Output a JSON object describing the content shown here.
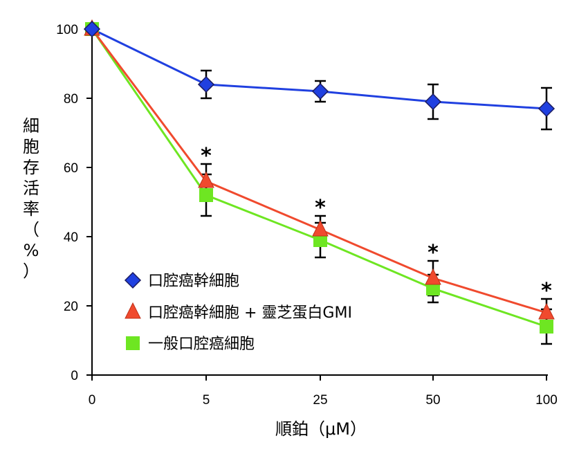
{
  "chart_data": {
    "type": "line",
    "xlabel": "順鉑（μM）",
    "ylabel": "細胞存活率（%）",
    "ylabel_chars": [
      "細",
      "胞",
      "存",
      "活",
      "率",
      "（",
      "%",
      "）"
    ],
    "categories": [
      "0",
      "5",
      "25",
      "50",
      "100"
    ],
    "yticks": [
      "0",
      "20",
      "40",
      "60",
      "80",
      "100"
    ],
    "ylim": [
      0,
      100
    ],
    "grid": false,
    "legend_position": "bottom-left",
    "series": [
      {
        "name": "口腔癌幹細胞",
        "color": "#2040e0",
        "marker": "diamond",
        "values": [
          100,
          84,
          82,
          79,
          77
        ],
        "errors": [
          0,
          4,
          3,
          5,
          6
        ]
      },
      {
        "name": "口腔癌幹細胞 + 靈芝蛋白GMI",
        "color": "#f04a2e",
        "marker": "triangle",
        "values": [
          100,
          56,
          42,
          28,
          18
        ],
        "errors": [
          0,
          5,
          4,
          5,
          4
        ]
      },
      {
        "name": "一般口腔癌細胞",
        "color": "#6ee622",
        "marker": "square",
        "values": [
          100,
          52,
          39,
          25,
          14
        ],
        "errors": [
          0,
          6,
          5,
          4,
          5
        ]
      }
    ],
    "annotations": [
      {
        "category": "5",
        "text": "*"
      },
      {
        "category": "25",
        "text": "*"
      },
      {
        "category": "50",
        "text": "*"
      },
      {
        "category": "100",
        "text": "*"
      }
    ]
  }
}
